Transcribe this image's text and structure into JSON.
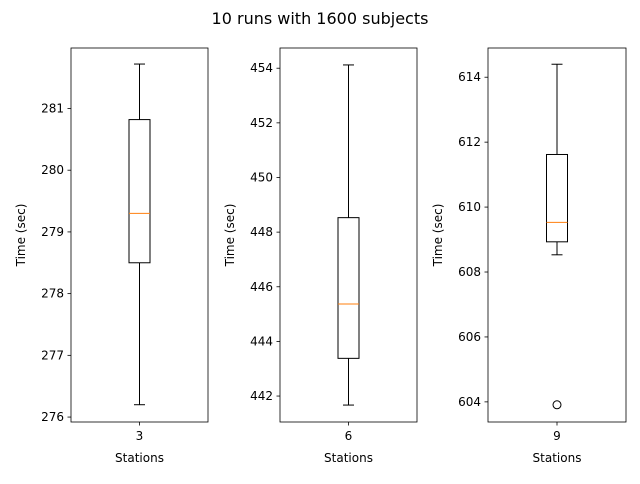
{
  "figure": {
    "title": "10 runs with 1600 subjects"
  },
  "chart_data": [
    {
      "type": "box",
      "xlabel": "Stations",
      "ylabel": "Time (sec)",
      "categories": [
        "3"
      ],
      "ylim": [
        275.92,
        281.98
      ],
      "yticks": [
        276,
        277,
        278,
        279,
        280,
        281
      ],
      "box": {
        "whisker_low": 276.2,
        "q1": 278.5,
        "median": 279.3,
        "q3": 280.82,
        "whisker_high": 281.72,
        "outliers": []
      },
      "colors": {
        "box": "#000000",
        "median": "#ff7f0e"
      }
    },
    {
      "type": "box",
      "xlabel": "Stations",
      "ylabel": "Time (sec)",
      "categories": [
        "6"
      ],
      "ylim": [
        441.05,
        454.74
      ],
      "yticks": [
        442,
        444,
        446,
        448,
        450,
        452,
        454
      ],
      "box": {
        "whisker_low": 441.67,
        "q1": 443.38,
        "median": 445.37,
        "q3": 448.53,
        "whisker_high": 454.12,
        "outliers": []
      },
      "colors": {
        "box": "#000000",
        "median": "#ff7f0e"
      }
    },
    {
      "type": "box",
      "xlabel": "Stations",
      "ylabel": "Time (sec)",
      "categories": [
        "9"
      ],
      "ylim": [
        603.38,
        614.9
      ],
      "yticks": [
        604,
        606,
        608,
        610,
        612,
        614
      ],
      "box": {
        "whisker_low": 608.53,
        "q1": 608.93,
        "median": 609.53,
        "q3": 611.62,
        "whisker_high": 614.4,
        "outliers": [
          603.91
        ]
      },
      "colors": {
        "box": "#000000",
        "median": "#ff7f0e"
      }
    }
  ]
}
